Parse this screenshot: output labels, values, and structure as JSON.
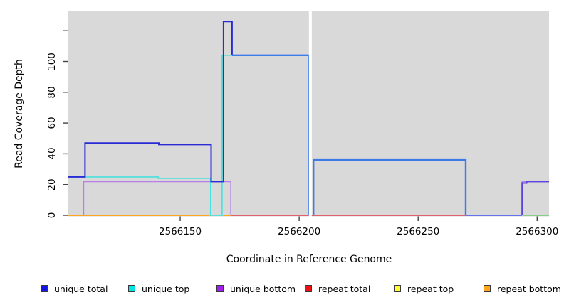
{
  "chart_data": {
    "type": "line",
    "subtype": "step-coverage-plot",
    "title": "",
    "xlabel": "Coordinate in Reference Genome",
    "ylabel": "Read Coverage Depth",
    "xlim": [
      2566103,
      2566305
    ],
    "ylim": [
      0,
      133
    ],
    "grid": false,
    "panel_background": "#d9d9d9",
    "legend_position": "bottom",
    "x_ticks": [
      2566150,
      2566200,
      2566250,
      2566300
    ],
    "x_tick_labels": [
      "2566150",
      "2566200",
      "2566250",
      "2566300"
    ],
    "y_ticks": [
      0,
      20,
      40,
      60,
      80,
      100,
      120
    ],
    "y_tick_labels": [
      "0",
      "20",
      "40",
      "60",
      "80",
      "100",
      ""
    ],
    "gap_region": {
      "x_start": 2566204.1,
      "x_end": 2566205.3,
      "note": "white no-data column"
    },
    "series": [
      {
        "name": "unique total",
        "color": "#2222cc",
        "steps": [
          [
            2566103,
            25
          ],
          [
            2566110,
            47
          ],
          [
            2566141,
            46
          ],
          [
            2566163,
            22
          ],
          [
            2566168,
            126
          ],
          [
            2566172,
            104
          ],
          [
            2566206,
            36
          ],
          [
            2566270,
            0
          ],
          [
            2566294,
            21
          ],
          [
            2566296,
            22
          ]
        ]
      },
      {
        "name": "unique top",
        "color": "#00e5ee",
        "steps": [
          [
            2566103,
            25
          ],
          [
            2566141,
            24
          ],
          [
            2566163,
            0
          ],
          [
            2566168,
            104
          ],
          [
            2566206,
            36
          ],
          [
            2566270,
            0
          ]
        ]
      },
      {
        "name": "unique bottom",
        "color": "#a020f0",
        "steps": [
          [
            2566103,
            0
          ],
          [
            2566110,
            22
          ],
          [
            2566172,
            0
          ],
          [
            2566294,
            22
          ]
        ]
      },
      {
        "name": "repeat total",
        "color": "#ee0000",
        "steps": [
          [
            2566103,
            0
          ]
        ]
      },
      {
        "name": "repeat top",
        "color": "#ffff00",
        "steps": [
          [
            2566103,
            0
          ]
        ]
      },
      {
        "name": "repeat bottom",
        "color": "#ffa500",
        "steps": [
          [
            2566103,
            0
          ]
        ]
      }
    ],
    "render_segments": [
      {
        "name": "baseline-orange-left",
        "color": "#ffa520",
        "width": 2,
        "pts": [
          [
            2566103,
            0
          ],
          [
            2566162.5,
            0
          ]
        ]
      },
      {
        "name": "baseline-green-mid",
        "color": "#5fcc8f",
        "width": 1.5,
        "pts": [
          [
            2566162.5,
            0
          ],
          [
            2566168,
            0
          ]
        ]
      },
      {
        "name": "baseline-orange-2",
        "color": "#ffa520",
        "width": 2,
        "pts": [
          [
            2566168,
            0
          ],
          [
            2566171.5,
            0
          ]
        ]
      },
      {
        "name": "baseline-crimson",
        "color": "#e0606e",
        "width": 2,
        "pts": [
          [
            2566171.5,
            0
          ],
          [
            2566270,
            0
          ]
        ]
      },
      {
        "name": "baseline-green-right",
        "color": "#6cc96c",
        "width": 1.5,
        "pts": [
          [
            2566294,
            0
          ],
          [
            2566305,
            0
          ]
        ]
      },
      {
        "name": "unique-bottom-main",
        "color": "#b77fe6",
        "width": 1.6,
        "pts": [
          [
            2566109.4,
            0
          ],
          [
            2566109.4,
            22
          ],
          [
            2566171.3,
            22
          ],
          [
            2566171.3,
            0
          ]
        ]
      },
      {
        "name": "unique-bottom-end",
        "color": "#b77fe6",
        "width": 1.6,
        "pts": [
          [
            2566293.7,
            0
          ],
          [
            2566293.7,
            22
          ],
          [
            2566305,
            22
          ]
        ]
      },
      {
        "name": "unique-top-main",
        "color": "#48e0dc",
        "width": 1.6,
        "pts": [
          [
            2566103,
            25
          ],
          [
            2566140.8,
            25
          ],
          [
            2566140.8,
            24
          ],
          [
            2566162.8,
            24
          ],
          [
            2566162.8,
            0
          ],
          [
            2566167.6,
            0
          ],
          [
            2566167.6,
            104
          ],
          [
            2566204,
            104
          ]
        ]
      },
      {
        "name": "unique-top-postgap",
        "color": "#48e0dc",
        "width": 1.6,
        "pts": [
          [
            2566206,
            0
          ],
          [
            2566206,
            36
          ],
          [
            2566270,
            36
          ],
          [
            2566270,
            0
          ]
        ]
      },
      {
        "name": "unique-total-navy",
        "color": "#2b2bd5",
        "width": 2,
        "pts": [
          [
            2566103,
            25
          ],
          [
            2566110,
            25
          ],
          [
            2566110,
            47
          ],
          [
            2566141,
            47
          ],
          [
            2566141,
            46
          ],
          [
            2566163,
            46
          ],
          [
            2566163,
            22
          ],
          [
            2566168.2,
            22
          ],
          [
            2566168.2,
            126
          ],
          [
            2566171.8,
            126
          ],
          [
            2566171.8,
            104
          ]
        ]
      },
      {
        "name": "unique-total-royal-1",
        "color": "#3d7be8",
        "width": 2.4,
        "pts": [
          [
            2566171.8,
            104
          ],
          [
            2566204,
            104
          ],
          [
            2566204,
            0
          ]
        ]
      },
      {
        "name": "unique-total-royal-2",
        "color": "#3d7be8",
        "width": 2.4,
        "pts": [
          [
            2566206,
            0
          ],
          [
            2566206,
            36
          ],
          [
            2566270,
            36
          ],
          [
            2566270,
            0
          ]
        ]
      },
      {
        "name": "total-zero-violet",
        "color": "#6673ee",
        "width": 2,
        "pts": [
          [
            2566270,
            0
          ],
          [
            2566293.7,
            0
          ]
        ]
      },
      {
        "name": "unique-total-end",
        "color": "#5a44e0",
        "width": 2,
        "pts": [
          [
            2566293.7,
            0
          ],
          [
            2566293.7,
            21
          ],
          [
            2566295.6,
            21
          ],
          [
            2566295.6,
            22
          ],
          [
            2566305,
            22
          ]
        ]
      }
    ]
  },
  "axes": {
    "x_title": "Coordinate in Reference Genome",
    "y_title": "Read Coverage Depth"
  },
  "legend": {
    "items": [
      {
        "label": "unique total",
        "color": "#1414e6"
      },
      {
        "label": "unique top",
        "color": "#00e6e6"
      },
      {
        "label": "unique bottom",
        "color": "#a020f0"
      },
      {
        "label": "repeat total",
        "color": "#ee1111"
      },
      {
        "label": "repeat top",
        "color": "#ffff33"
      },
      {
        "label": "repeat bottom",
        "color": "#ffa51e"
      }
    ]
  }
}
